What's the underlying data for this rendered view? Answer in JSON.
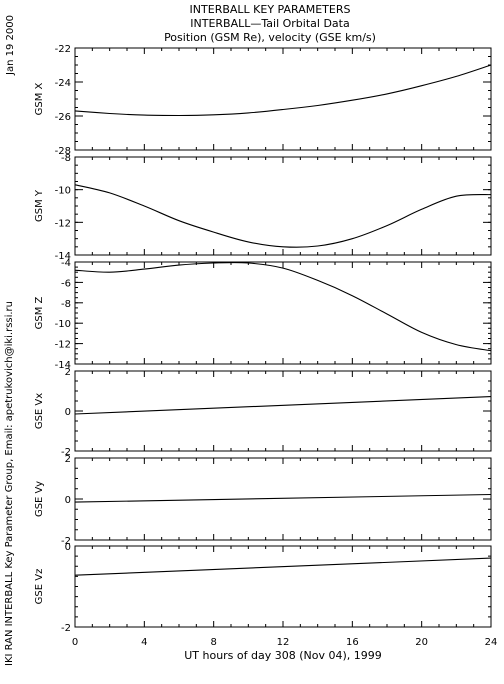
{
  "header": {
    "line1": "INTERBALL KEY PARAMETERS",
    "line2": "INTERBALL—Tail Orbital Data",
    "line3": "Position (GSM Re), velocity (GSE km/s)"
  },
  "side": {
    "date": "Jan 19 2000",
    "credit": "IKI RAN INTERBALL Key Parameter Group, Email: apetrukovich@iki.rssi.ru"
  },
  "chart_data": {
    "type": "line",
    "xlabel": "UT hours of day 308 (Nov 04), 1999",
    "xlim": [
      0,
      24
    ],
    "xticks": [
      0,
      4,
      8,
      12,
      16,
      20,
      24
    ],
    "panels": [
      {
        "ylabel": "GSM X",
        "ylim": [
          -28,
          -22
        ],
        "yticks": [
          -28,
          -26,
          -24,
          -22
        ],
        "x": [
          0,
          2,
          4,
          6,
          8,
          10,
          12,
          14,
          16,
          18,
          20,
          22,
          24
        ],
        "values": [
          -25.7,
          -25.85,
          -25.95,
          -25.97,
          -25.93,
          -25.82,
          -25.62,
          -25.38,
          -25.07,
          -24.7,
          -24.22,
          -23.67,
          -23.0
        ]
      },
      {
        "ylabel": "GSM Y",
        "ylim": [
          -14,
          -8
        ],
        "yticks": [
          -14,
          -12,
          -10,
          -8
        ],
        "x": [
          0,
          2,
          4,
          6,
          8,
          10,
          12,
          14,
          16,
          18,
          20,
          22,
          24
        ],
        "values": [
          -9.7,
          -10.2,
          -11.0,
          -11.9,
          -12.6,
          -13.2,
          -13.5,
          -13.45,
          -13.0,
          -12.2,
          -11.2,
          -10.4,
          -10.3
        ]
      },
      {
        "ylabel": "GSM Z",
        "ylim": [
          -14,
          -4
        ],
        "yticks": [
          -14,
          -12,
          -10,
          -8,
          -6,
          -4
        ],
        "x": [
          0,
          2,
          4,
          6,
          8,
          10,
          12,
          14,
          16,
          18,
          20,
          22,
          24
        ],
        "values": [
          -4.8,
          -5.0,
          -4.7,
          -4.3,
          -4.1,
          -4.1,
          -4.6,
          -5.8,
          -7.3,
          -9.1,
          -10.9,
          -12.1,
          -12.7
        ]
      },
      {
        "ylabel": "GSE Vx",
        "ylim": [
          -2,
          2
        ],
        "yticks": [
          -2,
          0,
          2
        ],
        "x": [
          0,
          24
        ],
        "values": [
          -0.15,
          0.72
        ]
      },
      {
        "ylabel": "GSE Vy",
        "ylim": [
          -2,
          2
        ],
        "yticks": [
          -2,
          0,
          2
        ],
        "x": [
          0,
          24
        ],
        "values": [
          -0.15,
          0.22
        ]
      },
      {
        "ylabel": "GSE Vz",
        "ylim": [
          -2,
          0
        ],
        "yticks": [
          -2,
          0
        ],
        "x": [
          0,
          24
        ],
        "values": [
          -0.72,
          -0.3
        ]
      }
    ]
  }
}
